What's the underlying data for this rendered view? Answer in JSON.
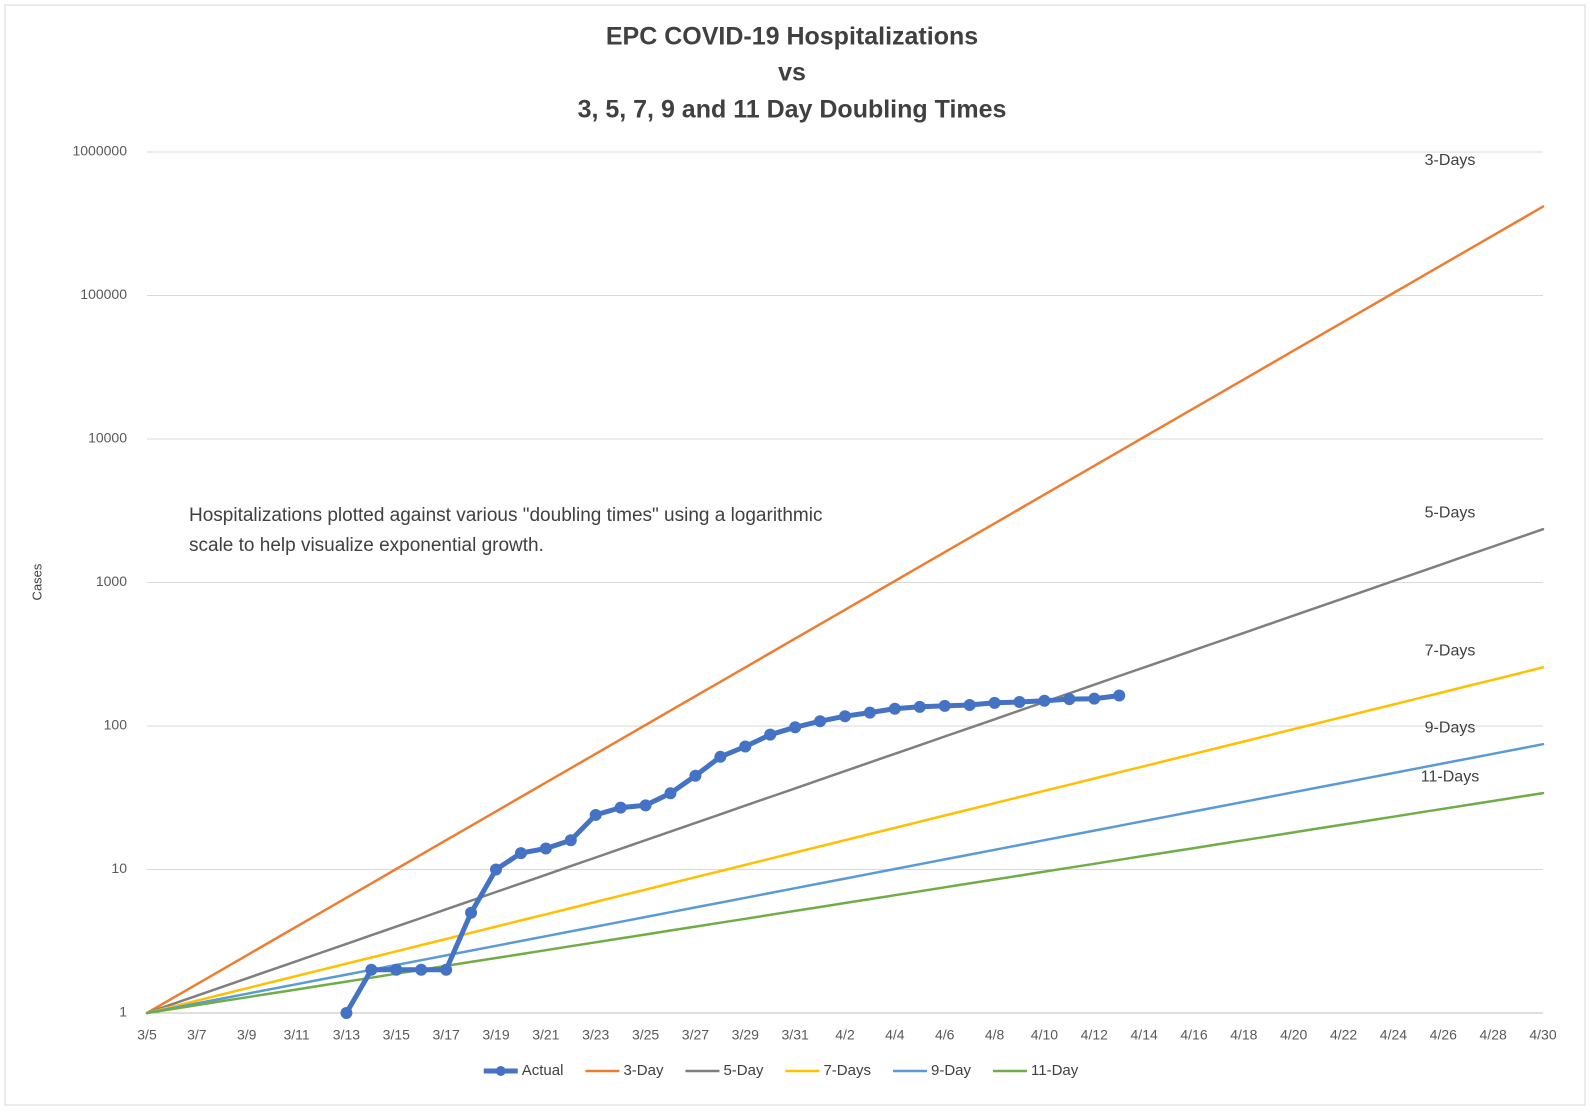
{
  "chart_data": {
    "type": "line",
    "title": [
      "EPC COVID-19 Hospitalizations",
      "vs",
      "3, 5, 7, 9 and 11 Day Doubling Times"
    ],
    "y_label": "Cases",
    "annotation": [
      "Hospitalizations plotted against various \"doubling times\" using a logarithmic",
      "scale to help visualize exponential growth."
    ],
    "y_scale": "log",
    "grid": true,
    "legend": "bottom",
    "ylim": [
      1,
      1000000
    ],
    "yticks": [
      1,
      10,
      100,
      1000,
      10000,
      100000,
      1000000
    ],
    "categories": [
      "3/5",
      null,
      "3/7",
      null,
      "3/9",
      null,
      "3/11",
      null,
      "3/13",
      null,
      "3/15",
      null,
      "3/17",
      null,
      "3/19",
      null,
      "3/21",
      null,
      "3/23",
      null,
      "3/25",
      null,
      "3/27",
      null,
      "3/29",
      null,
      "3/31",
      null,
      "4/2",
      null,
      "4/4",
      null,
      "4/6",
      null,
      "4/8",
      null,
      "4/10",
      null,
      "4/12",
      null,
      "4/14",
      null,
      "4/16",
      null,
      "4/18",
      null,
      "4/20",
      null,
      "4/22",
      null,
      "4/24",
      null,
      "4/26",
      null,
      "4/28",
      null,
      "4/30"
    ],
    "series": [
      {
        "name": "Actual",
        "color": "#4472c4",
        "width": 5,
        "markers": true,
        "values": [
          null,
          null,
          null,
          null,
          null,
          null,
          null,
          null,
          1,
          2,
          2,
          2,
          2,
          5,
          10,
          13,
          14,
          16,
          24,
          27,
          28,
          34,
          45,
          61,
          72,
          87,
          98,
          108,
          117,
          124,
          132,
          136,
          138,
          140,
          145,
          147,
          150,
          154,
          155,
          163,
          null,
          null,
          null,
          null,
          null,
          null,
          null,
          null,
          null,
          null,
          null,
          null,
          null,
          null,
          null,
          null,
          null
        ]
      },
      {
        "name": "3-Day",
        "end_label": "3-Days",
        "color": "#ed7d31",
        "width": 2.5,
        "values": [
          1,
          1.26,
          1.587,
          2,
          2.52,
          3.175,
          4,
          5.04,
          6.35,
          8,
          10.08,
          12.7,
          16,
          20.16,
          25.4,
          32,
          40.3,
          50.8,
          64,
          80.6,
          101.6,
          128,
          161.3,
          203.2,
          256,
          322.5,
          406.4,
          512,
          645,
          813,
          1024,
          1290,
          1625,
          2048,
          2580,
          3251,
          4096,
          5161,
          6502,
          8192,
          10321,
          13004,
          16384,
          20643,
          26008,
          32768,
          41285,
          52016,
          65536,
          82570,
          104032,
          131072,
          165140,
          208064,
          262144,
          330281,
          416128
        ]
      },
      {
        "name": "5-Day",
        "end_label": "5-Days",
        "color": "#7f7f7f",
        "width": 2.5,
        "values": [
          1,
          1.149,
          1.32,
          1.516,
          1.741,
          2,
          2.297,
          2.639,
          3.031,
          3.482,
          4,
          4.595,
          5.278,
          6.063,
          6.964,
          8,
          9.19,
          10.56,
          12.13,
          13.93,
          16,
          18.38,
          21.11,
          24.25,
          27.86,
          32,
          36.76,
          42.22,
          48.5,
          55.72,
          64,
          73.52,
          84.45,
          97.01,
          111.4,
          128,
          147,
          168.9,
          194,
          222.9,
          256,
          294.1,
          337.8,
          388,
          445.7,
          512,
          588.1,
          675.6,
          776.1,
          891.4,
          1024,
          1176,
          1351,
          1552,
          1783,
          2048,
          2353
        ]
      },
      {
        "name": "7-Days",
        "end_label": "7-Days",
        "color": "#ffc000",
        "width": 2.5,
        "values": [
          1,
          1.104,
          1.219,
          1.346,
          1.486,
          1.641,
          1.811,
          2,
          2.208,
          2.438,
          2.692,
          2.972,
          3.281,
          3.623,
          4,
          4.416,
          4.876,
          5.383,
          5.944,
          6.563,
          7.246,
          8,
          8.833,
          9.752,
          10.77,
          11.89,
          13.13,
          14.49,
          16,
          17.67,
          19.5,
          21.53,
          23.78,
          26.25,
          28.98,
          32,
          35.33,
          39.01,
          43.07,
          47.55,
          52.5,
          57.96,
          64,
          70.66,
          78.02,
          86.13,
          95.1,
          105,
          115.9,
          128,
          141.3,
          156,
          172.3,
          190.2,
          210,
          231.9,
          256
        ]
      },
      {
        "name": "9-Day",
        "end_label": "9-Days",
        "color": "#5b9bd5",
        "width": 2.5,
        "values": [
          1,
          1.08,
          1.167,
          1.26,
          1.361,
          1.47,
          1.587,
          1.715,
          1.852,
          2,
          2.16,
          2.333,
          2.52,
          2.722,
          2.939,
          3.175,
          3.429,
          3.703,
          4,
          4.32,
          4.666,
          5.04,
          5.443,
          5.879,
          6.35,
          6.858,
          7.407,
          8,
          8.64,
          9.332,
          10.08,
          10.89,
          11.76,
          12.7,
          13.72,
          14.81,
          16,
          17.28,
          18.66,
          20.16,
          21.77,
          23.52,
          25.4,
          27.43,
          29.63,
          32,
          34.56,
          37.33,
          40.32,
          43.54,
          47.03,
          50.8,
          54.86,
          59.26,
          64,
          69.12,
          74.65
        ]
      },
      {
        "name": "11-Day",
        "end_label": "11-Days",
        "color": "#70ad47",
        "width": 2.5,
        "values": [
          1,
          1.065,
          1.134,
          1.208,
          1.287,
          1.37,
          1.459,
          1.554,
          1.656,
          1.763,
          1.878,
          2,
          2.13,
          2.269,
          2.416,
          2.573,
          2.741,
          2.919,
          3.109,
          3.311,
          3.526,
          3.756,
          4,
          4.26,
          4.537,
          4.832,
          5.146,
          5.481,
          5.838,
          6.218,
          6.622,
          7.052,
          7.511,
          8,
          8.52,
          9.074,
          9.665,
          10.29,
          10.96,
          11.68,
          12.44,
          13.25,
          14.1,
          15.03,
          16,
          17.04,
          18.15,
          19.33,
          20.59,
          21.92,
          23.35,
          24.87,
          26.49,
          28.21,
          30.04,
          32,
          34.08
        ]
      }
    ]
  }
}
